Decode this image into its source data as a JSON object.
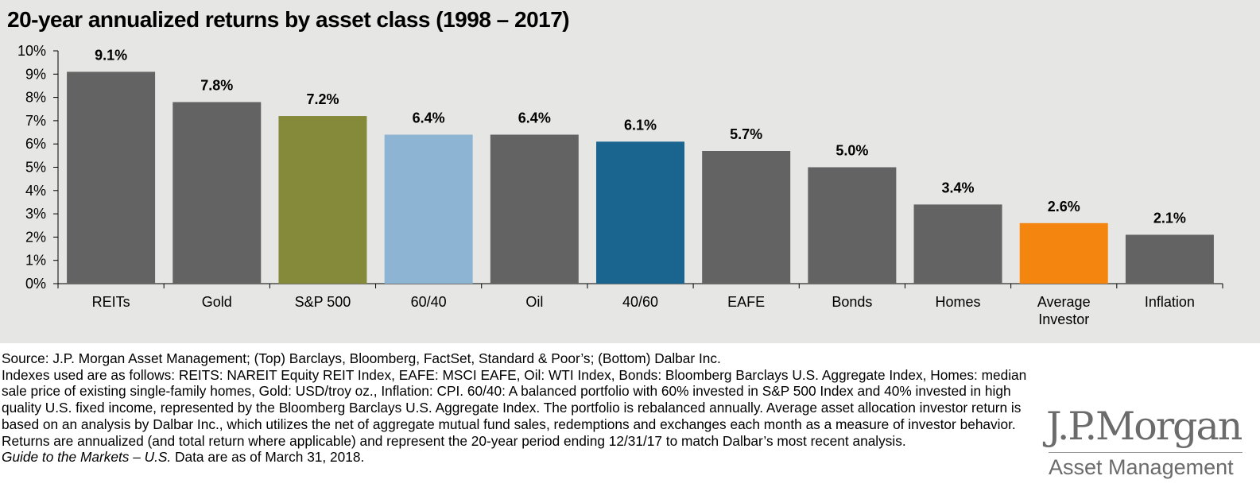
{
  "title": "20-year annualized returns by asset class (1998 – 2017)",
  "chart_data": {
    "type": "bar",
    "categories": [
      "REITs",
      "Gold",
      "S&P 500",
      "60/40",
      "Oil",
      "40/60",
      "EAFE",
      "Bonds",
      "Homes",
      "Average\nInvestor",
      "Inflation"
    ],
    "values": [
      9.1,
      7.8,
      7.2,
      6.4,
      6.4,
      6.1,
      5.7,
      5.0,
      3.4,
      2.6,
      2.1
    ],
    "labels": [
      "9.1%",
      "7.8%",
      "7.2%",
      "6.4%",
      "6.4%",
      "6.1%",
      "5.7%",
      "5.0%",
      "3.4%",
      "2.6%",
      "2.1%"
    ],
    "colors": [
      "#636363",
      "#636363",
      "#858a3b",
      "#8db4d3",
      "#636363",
      "#1a6590",
      "#636363",
      "#636363",
      "#636363",
      "#f4860f",
      "#636363"
    ],
    "ylim": [
      0,
      10
    ],
    "yticks": [
      0,
      1,
      2,
      3,
      4,
      5,
      6,
      7,
      8,
      9,
      10
    ],
    "ytick_labels": [
      "0%",
      "1%",
      "2%",
      "3%",
      "4%",
      "5%",
      "6%",
      "7%",
      "8%",
      "9%",
      "10%"
    ],
    "xlabel": "",
    "ylabel": "",
    "grid": false,
    "legend": "none"
  },
  "footer": {
    "source": "Source: J.P. Morgan Asset Management; (Top) Barclays, Bloomberg, FactSet, Standard & Poor’s; (Bottom) Dalbar Inc.",
    "indexes": "Indexes used are as follows: REITS: NAREIT Equity REIT Index, EAFE: MSCI EAFE, Oil: WTI Index, Bonds: Bloomberg Barclays U.S. Aggregate Index, Homes: median sale price of existing single-family homes, Gold: USD/troy oz., Inflation: CPI. 60/40: A balanced portfolio with 60% invested in S&P 500 Index and 40% invested in high quality U.S. fixed income, represented by the Bloomberg Barclays U.S. Aggregate Index. The portfolio is rebalanced annually. Average asset allocation investor return is based on an analysis by Dalbar Inc., which utilizes the net of aggregate mutual fund sales, redemptions and exchanges each month as a measure of investor behavior. Returns are annualized (and total return where applicable) and represent the 20-year period ending 12/31/17 to match Dalbar’s most recent analysis.",
    "guide_italic": "Guide to the Markets – U.S.",
    "date_note": " Data are as of March 31, 2018."
  },
  "logo": {
    "main": "J.P.Morgan",
    "sub": "Asset Management"
  }
}
